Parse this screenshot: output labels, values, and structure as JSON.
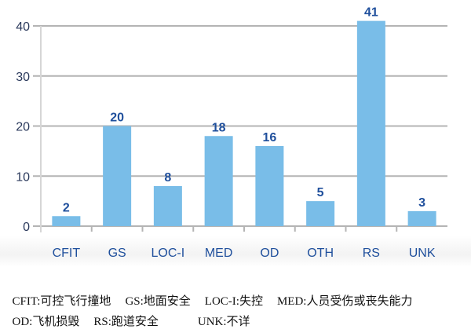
{
  "chart_data": {
    "type": "bar",
    "categories": [
      "CFIT",
      "GS",
      "LOC-I",
      "MED",
      "OD",
      "OTH",
      "RS",
      "UNK"
    ],
    "values": [
      2,
      20,
      8,
      18,
      16,
      5,
      41,
      3
    ],
    "title": "",
    "xlabel": "",
    "ylabel": "",
    "ylim": [
      0,
      40
    ],
    "yticks": [
      0,
      10,
      20,
      30,
      40
    ],
    "grid": true,
    "data_labels": true,
    "colors": {
      "bar": "#79bde8",
      "label": "#1f4f9c",
      "grid": "#b4b4b4",
      "tick": "#2b3a5c"
    }
  },
  "legend_notes": {
    "line1": [
      "CFIT:可控飞行撞地",
      "GS:地面安全",
      "LOC-I:失控",
      "MED:人员受伤或丧失能力"
    ],
    "line2": [
      "OD:飞机损毁",
      "RS:跑道安全",
      "UNK:不详"
    ]
  }
}
